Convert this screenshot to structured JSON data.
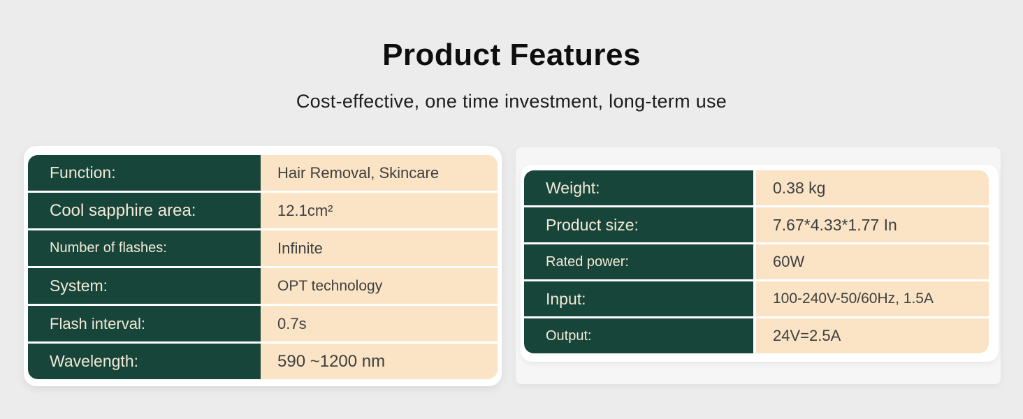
{
  "page": {
    "title": "Product Features",
    "subtitle": "Cost-effective, one time investment, long-term use"
  },
  "colors": {
    "background": "#ececec",
    "panel": "#f6f6f6",
    "card": "#ffffff",
    "green": "#17453a",
    "cream": "#fae4c5",
    "label_text": "#f3ead8",
    "value_text": "#3e3f3f",
    "title_text": "#0e0e0e",
    "subtitle_text": "#1c1c1c"
  },
  "left_table": {
    "rows": [
      {
        "label": "Function:",
        "value": "Hair Removal, Skincare"
      },
      {
        "label": "Cool sapphire area:",
        "value": "12.1cm²"
      },
      {
        "label": "Number of flashes:",
        "value": "Infinite"
      },
      {
        "label": "System:",
        "value": "OPT technology"
      },
      {
        "label": "Flash interval:",
        "value": "0.7s"
      },
      {
        "label": "Wavelength:",
        "value": "590 ~1200 nm"
      }
    ]
  },
  "right_table": {
    "rows": [
      {
        "label": "Weight:",
        "value": "0.38 kg"
      },
      {
        "label": "Product size:",
        "value": "7.67*4.33*1.77 In"
      },
      {
        "label": "Rated power:",
        "value": "60W"
      },
      {
        "label": "Input:",
        "value": "100-240V-50/60Hz, 1.5A"
      },
      {
        "label": "Output:",
        "value": "24V=2.5A"
      }
    ]
  }
}
